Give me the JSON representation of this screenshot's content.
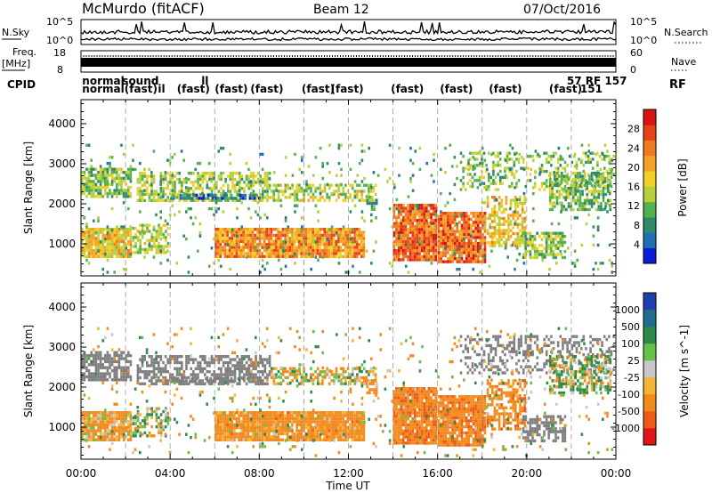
{
  "header": {
    "station": "McMurdo (fitACF)",
    "beam": "Beam 12",
    "date": "07/Oct/2016"
  },
  "status_panels": {
    "nsky_label": "N.Sky",
    "nsky_ticks": [
      "10^5",
      "10^0"
    ],
    "nsearch_label": "N.Search",
    "nsearch_ticks": [
      "10^5",
      "10^0"
    ],
    "freq_label": "Freq.",
    "freq_unit": "[MHz]",
    "freq_ticks": [
      "18",
      "8"
    ],
    "nave_label": "Nave",
    "nave_ticks": [
      "60",
      "0"
    ],
    "cpid_label": "CPID",
    "rf_label": "RF",
    "cpid_entries": [
      {
        "text": "normal",
        "row": 0,
        "t": 0.05
      },
      {
        "text": "normal",
        "row": 1,
        "t": 0.05
      },
      {
        "text": "sound",
        "row": 0,
        "t": 1.85
      },
      {
        "text": "(fast)",
        "row": 1,
        "t": 1.95
      },
      {
        "text": "d",
        "row": 0,
        "t": 3.15
      },
      {
        "text": "il",
        "row": 1,
        "t": 3.45
      },
      {
        "text": "(fast)",
        "row": 1,
        "t": 4.3
      },
      {
        "text": "ll",
        "row": 0,
        "t": 5.4
      },
      {
        "text": "(fast)",
        "row": 1,
        "t": 6.0
      },
      {
        "text": "(fast)",
        "row": 1,
        "t": 7.6
      },
      {
        "text": "(fast)",
        "row": 1,
        "t": 9.9
      },
      {
        "text": "(fast)",
        "row": 1,
        "t": 11.2
      },
      {
        "text": "(fast)",
        "row": 1,
        "t": 13.9
      },
      {
        "text": "(fast)",
        "row": 1,
        "t": 16.1
      },
      {
        "text": "(fast)",
        "row": 1,
        "t": 18.3
      },
      {
        "text": "(fast)",
        "row": 1,
        "t": 21.0
      },
      {
        "text": "57 RF 157",
        "row": 0,
        "t": 21.8
      },
      {
        "text": "151",
        "row": 1,
        "t": 22.4
      }
    ]
  },
  "colorbars": {
    "power": {
      "label": "Power [dB]",
      "ticks": [
        "4",
        "8",
        "12",
        "16",
        "20",
        "24",
        "28"
      ],
      "colors": [
        "#0b19d8",
        "#1f6fb4",
        "#2e8a6a",
        "#55b04e",
        "#b4d03a",
        "#f2cf26",
        "#f4a224",
        "#f07a1e",
        "#e8421a",
        "#d91414"
      ]
    },
    "velocity": {
      "label": "Velocity [m s^-1]",
      "ticks": [
        "1000",
        "500",
        "100",
        "25",
        "-25",
        "-100",
        "-500",
        "-1000"
      ],
      "colors": [
        "#1f3fb0",
        "#1f6e8e",
        "#2e8a4a",
        "#66c04a",
        "#c8c8c8",
        "#f4b436",
        "#f28a1e",
        "#ee5a1a",
        "#e01616"
      ]
    }
  },
  "ground_scatter_color": "#7f7f7f",
  "chart_data": [
    {
      "type": "heatmap",
      "quantity": "Power",
      "ylabel": "Slant Range [km]",
      "xlabel": "",
      "ylim": [
        200,
        4600
      ],
      "yticks": [
        1000,
        2000,
        3000,
        4000
      ],
      "xlim": [
        0,
        24
      ],
      "colorscale_range": [
        0,
        30
      ],
      "grid": "dashed vertical lines every 2 h",
      "regions": [
        {
          "t0": 0.0,
          "t1": 2.3,
          "r0": 2150,
          "r1": 2900,
          "value": 12,
          "density": 0.75
        },
        {
          "t0": 0.0,
          "t1": 2.3,
          "r0": 650,
          "r1": 1400,
          "value": 17,
          "density": 0.9
        },
        {
          "t0": 2.3,
          "t1": 4.0,
          "r0": 750,
          "r1": 1500,
          "value": 14,
          "density": 0.6
        },
        {
          "t0": 2.5,
          "t1": 8.5,
          "r0": 2050,
          "r1": 2800,
          "value": 13,
          "density": 0.6
        },
        {
          "t0": 4.0,
          "t1": 8.0,
          "r0": 2100,
          "r1": 2250,
          "value": 6,
          "density": 0.7
        },
        {
          "t0": 6.0,
          "t1": 12.8,
          "r0": 650,
          "r1": 1400,
          "value": 21,
          "density": 0.95
        },
        {
          "t0": 8.5,
          "t1": 13.3,
          "r0": 2050,
          "r1": 2500,
          "value": 14,
          "density": 0.55
        },
        {
          "t0": 12.8,
          "t1": 13.3,
          "r0": 1800,
          "r1": 2200,
          "value": 8,
          "density": 0.6
        },
        {
          "t0": 14.0,
          "t1": 16.0,
          "r0": 550,
          "r1": 2000,
          "value": 24,
          "density": 0.95
        },
        {
          "t0": 16.0,
          "t1": 18.2,
          "r0": 550,
          "r1": 1800,
          "value": 23,
          "density": 0.9
        },
        {
          "t0": 18.2,
          "t1": 20.0,
          "r0": 900,
          "r1": 2200,
          "value": 17,
          "density": 0.6
        },
        {
          "t0": 19.8,
          "t1": 21.8,
          "r0": 650,
          "r1": 1300,
          "value": 13,
          "density": 0.65
        },
        {
          "t0": 17.0,
          "t1": 24.0,
          "r0": 2300,
          "r1": 3300,
          "value": 12,
          "density": 0.35
        },
        {
          "t0": 21.0,
          "t1": 23.8,
          "r0": 1800,
          "r1": 2800,
          "value": 11,
          "density": 0.6
        },
        {
          "t0": 0.0,
          "t1": 24.0,
          "r0": 250,
          "r1": 3500,
          "value": 10,
          "density": 0.05
        }
      ]
    },
    {
      "type": "heatmap",
      "quantity": "Velocity",
      "ylabel": "Slant Range [km]",
      "xlabel": "Time UT",
      "xticks": [
        "00:00",
        "04:00",
        "08:00",
        "12:00",
        "16:00",
        "20:00",
        "00:00"
      ],
      "ylim": [
        200,
        4600
      ],
      "yticks": [
        1000,
        2000,
        3000,
        4000
      ],
      "xlim": [
        0,
        24
      ],
      "colorscale_range": [
        -1000,
        1000
      ],
      "grid": "dashed vertical lines every 2 h",
      "regions": [
        {
          "t0": 0.0,
          "t1": 2.3,
          "r0": 2150,
          "r1": 2900,
          "value": 0,
          "density": 0.75,
          "ground": true
        },
        {
          "t0": 0.0,
          "t1": 2.3,
          "r0": 650,
          "r1": 1400,
          "value": -180,
          "density": 0.9
        },
        {
          "t0": 2.3,
          "t1": 4.0,
          "r0": 750,
          "r1": 1500,
          "value": 90,
          "density": 0.55
        },
        {
          "t0": 2.5,
          "t1": 8.5,
          "r0": 2050,
          "r1": 2800,
          "value": 0,
          "density": 0.6,
          "ground": true
        },
        {
          "t0": 4.0,
          "t1": 8.0,
          "r0": 2100,
          "r1": 2250,
          "value": 0,
          "density": 0.6,
          "ground": true
        },
        {
          "t0": 6.0,
          "t1": 12.8,
          "r0": 650,
          "r1": 1400,
          "value": -260,
          "density": 0.95
        },
        {
          "t0": 8.5,
          "t1": 13.3,
          "r0": 2050,
          "r1": 2500,
          "value": -60,
          "density": 0.55
        },
        {
          "t0": 12.8,
          "t1": 13.3,
          "r0": 1800,
          "r1": 2200,
          "value": -200,
          "density": 0.6
        },
        {
          "t0": 14.0,
          "t1": 16.0,
          "r0": 550,
          "r1": 2000,
          "value": -400,
          "density": 0.95
        },
        {
          "t0": 16.0,
          "t1": 18.2,
          "r0": 550,
          "r1": 1800,
          "value": -380,
          "density": 0.9
        },
        {
          "t0": 18.2,
          "t1": 20.0,
          "r0": 900,
          "r1": 2200,
          "value": -320,
          "density": 0.6
        },
        {
          "t0": 19.8,
          "t1": 21.8,
          "r0": 650,
          "r1": 1300,
          "value": 0,
          "density": 0.6,
          "ground": true
        },
        {
          "t0": 17.0,
          "t1": 24.0,
          "r0": 2300,
          "r1": 3300,
          "value": 0,
          "density": 0.35,
          "ground": true
        },
        {
          "t0": 21.0,
          "t1": 23.8,
          "r0": 1800,
          "r1": 2800,
          "value": 60,
          "density": 0.55
        },
        {
          "t0": 0.0,
          "t1": 24.0,
          "r0": 250,
          "r1": 3500,
          "value": -50,
          "density": 0.05
        }
      ]
    }
  ]
}
